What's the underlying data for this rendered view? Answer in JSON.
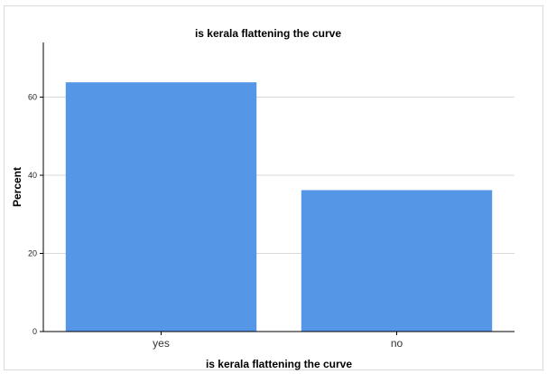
{
  "chart_data": {
    "type": "bar",
    "title": "is kerala flattening the curve",
    "xlabel": "is kerala flattening the curve",
    "ylabel": "Percent",
    "categories": [
      "yes",
      "no"
    ],
    "values": [
      63.8,
      36.2
    ],
    "ylim": [
      0,
      74
    ],
    "yticks": [
      0,
      20,
      40,
      60
    ],
    "grid": true,
    "legend": "none",
    "bar_color": "#5596e6",
    "grid_color": "#d9d9d9"
  }
}
